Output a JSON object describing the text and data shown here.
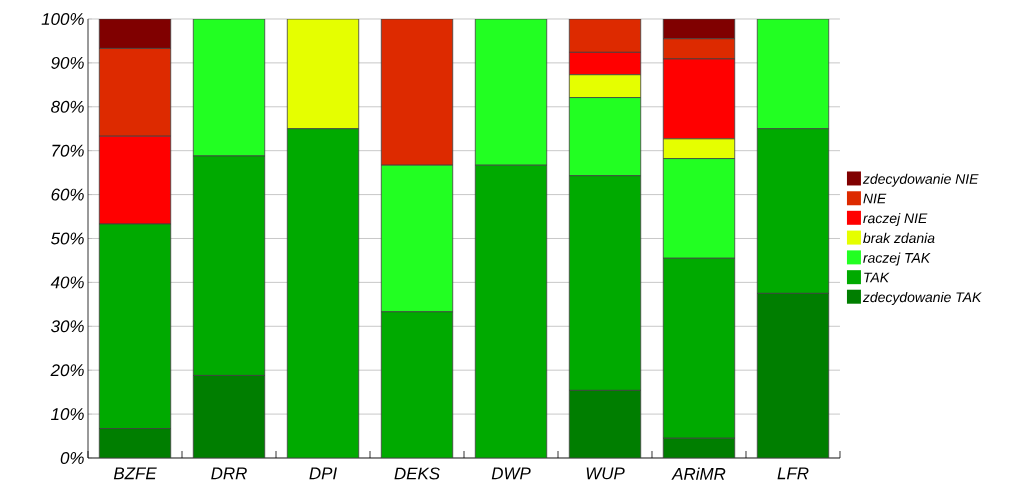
{
  "chart_data": {
    "type": "bar",
    "stacked": true,
    "categories": [
      "BZFE",
      "DRR",
      "DPI",
      "DEKS",
      "DWP",
      "WUP",
      "ARiMR",
      "LFR"
    ],
    "series": [
      {
        "name": "zdecydowanie TAK",
        "color": "#007e00",
        "values": [
          6.7,
          18.8,
          0,
          0,
          0,
          15.4,
          4.5,
          37.5
        ]
      },
      {
        "name": "TAK",
        "color": "#00aa00",
        "values": [
          46.6,
          50,
          75,
          33.3,
          66.7,
          48.9,
          41,
          37.5
        ]
      },
      {
        "name": "raczej TAK",
        "color": "#22ff22",
        "values": [
          0,
          31.2,
          0,
          33.4,
          33.3,
          17.8,
          22.7,
          25
        ]
      },
      {
        "name": "brak zdania",
        "color": "#e5ff00",
        "values": [
          0,
          0,
          25,
          0,
          0,
          5.2,
          4.5,
          0
        ]
      },
      {
        "name": "raczej NIE",
        "color": "#ff0000",
        "values": [
          20,
          0,
          0,
          0,
          0,
          5.1,
          18.2,
          0
        ]
      },
      {
        "name": "NIE",
        "color": "#dd2a00",
        "values": [
          20,
          0,
          0,
          33.3,
          0,
          7.6,
          4.6,
          0
        ]
      },
      {
        "name": "zdecydowanie NIE",
        "color": "#800000",
        "values": [
          6.7,
          0,
          0,
          0,
          0,
          0,
          4.5,
          0
        ]
      }
    ],
    "ylim": [
      0,
      100
    ],
    "yticks": [
      {
        "value": 0,
        "label": "0%"
      },
      {
        "value": 10,
        "label": "10%"
      },
      {
        "value": 20,
        "label": "20%"
      },
      {
        "value": 30,
        "label": "30%"
      },
      {
        "value": 40,
        "label": "40%"
      },
      {
        "value": 50,
        "label": "50%"
      },
      {
        "value": 60,
        "label": "60%"
      },
      {
        "value": 70,
        "label": "70%"
      },
      {
        "value": 80,
        "label": "80%"
      },
      {
        "value": 90,
        "label": "90%"
      },
      {
        "value": 100,
        "label": "100%"
      }
    ],
    "grid": "y",
    "legend": "right"
  }
}
